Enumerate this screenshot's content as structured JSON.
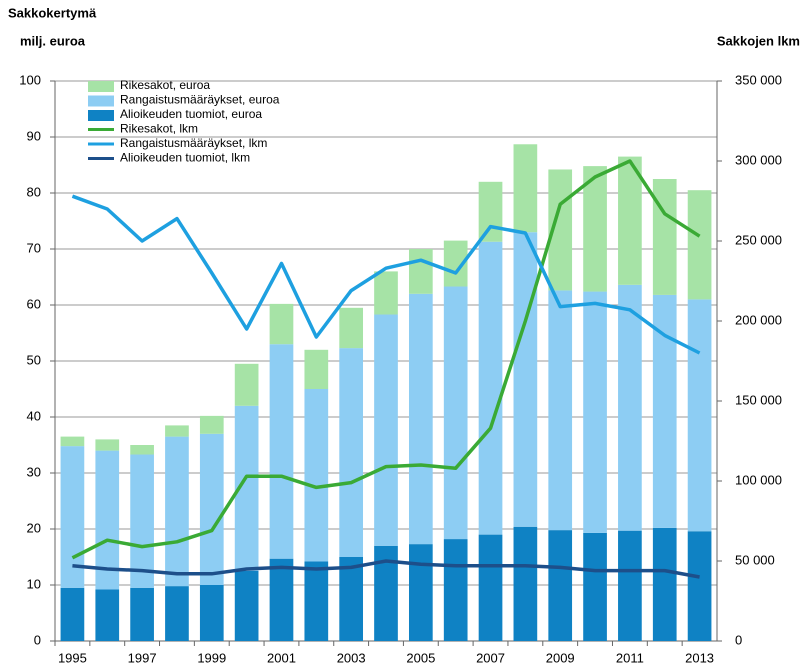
{
  "chart_data": {
    "type": "bar_line",
    "ylabel": [
      "Sakkokertymä",
      "milj. euroa"
    ],
    "y2label": "Sakkojen lkm",
    "categories": [
      "1995",
      null,
      "1997",
      null,
      "1999",
      null,
      "2001",
      null,
      "2003",
      null,
      "2005",
      null,
      "2007",
      null,
      "2009",
      null,
      "2011",
      null,
      "2013"
    ],
    "ylim": [
      0,
      100
    ],
    "yticks": [
      0,
      10,
      20,
      30,
      40,
      50,
      60,
      70,
      80,
      90,
      100
    ],
    "y2lim": [
      0,
      350000
    ],
    "y2ticks": [
      {
        "value": 0,
        "label": "0"
      },
      {
        "value": 50000,
        "label": "50 000"
      },
      {
        "value": 100000,
        "label": "100 000"
      },
      {
        "value": 150000,
        "label": "150 000"
      },
      {
        "value": 200000,
        "label": "200 000"
      },
      {
        "value": 250000,
        "label": "250 000"
      },
      {
        "value": 300000,
        "label": "300 000"
      },
      {
        "value": 350000,
        "label": "350 000"
      }
    ],
    "grid": true,
    "legend": "upper left",
    "series": [
      {
        "name": "Rikesakot, euroa",
        "kind": "bar",
        "color": "#a6e3a6",
        "values": [
          1.7,
          2,
          1.7,
          2,
          3.2,
          7.5,
          7.2,
          7,
          7.2,
          7.7,
          8,
          8.2,
          10.7,
          15.7,
          21.6,
          22.4,
          22.9,
          20.7,
          19.5
        ]
      },
      {
        "name": "Rangaistusmääräykset, euroa",
        "kind": "bar",
        "color": "#8dcdf3",
        "values": [
          25.3,
          24.8,
          23.8,
          26.7,
          27,
          29.5,
          38.3,
          30.8,
          37.3,
          41.3,
          44.7,
          45.1,
          52.3,
          52.6,
          42.8,
          43.1,
          43.9,
          41.6,
          41.4
        ]
      },
      {
        "name": "Alioikeuden tuomiot, euroa",
        "kind": "bar",
        "color": "#0f82c4",
        "values": [
          9.5,
          9.2,
          9.5,
          9.8,
          10,
          12.5,
          14.7,
          14.2,
          15,
          17,
          17.3,
          18.2,
          19,
          20.4,
          19.8,
          19.3,
          19.7,
          20.2,
          19.6
        ]
      },
      {
        "name": "Rikesakot, lkm",
        "kind": "line",
        "axis": "y2",
        "color": "#3aaa35",
        "values": [
          52000,
          63000,
          59000,
          62000,
          69000,
          103000,
          103000,
          96000,
          99000,
          109000,
          110000,
          108000,
          133000,
          200000,
          273000,
          290000,
          300000,
          267000,
          253000
        ]
      },
      {
        "name": "Rangaistusmääräykset, lkm",
        "kind": "line",
        "axis": "y2",
        "color": "#1ea0e0",
        "values": [
          278000,
          270000,
          250000,
          264000,
          230000,
          195000,
          236000,
          190000,
          219000,
          233000,
          238000,
          230000,
          259000,
          255000,
          209000,
          211000,
          207000,
          191000,
          180000
        ]
      },
      {
        "name": "Alioikeuden tuomiot, lkm",
        "kind": "line",
        "axis": "y2",
        "color": "#1d4f8a",
        "values": [
          47000,
          45000,
          44000,
          42000,
          42000,
          45000,
          46000,
          45000,
          46000,
          50000,
          48000,
          47000,
          47000,
          47000,
          46000,
          44000,
          44000,
          44000,
          40000
        ]
      }
    ]
  }
}
